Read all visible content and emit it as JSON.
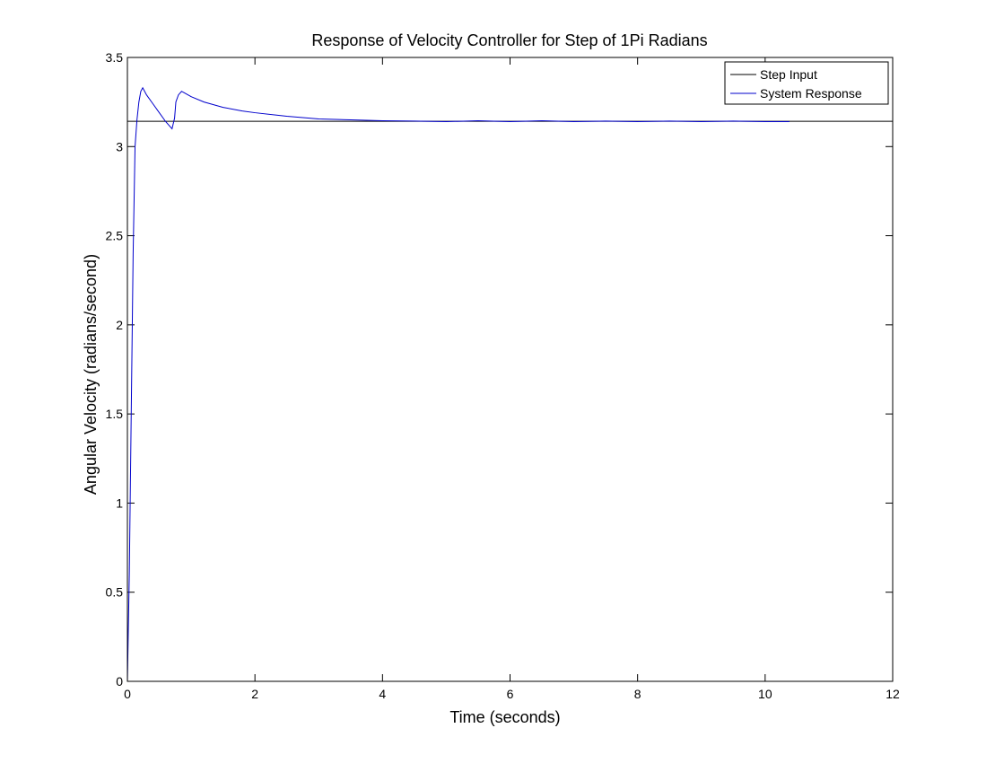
{
  "chart_data": {
    "type": "line",
    "title": "Response of Velocity Controller for Step of 1Pi Radians",
    "xlabel": "Time (seconds)",
    "ylabel": "Angular Velocity (radians/second)",
    "xlim": [
      0,
      12
    ],
    "ylim": [
      0,
      3.5
    ],
    "xticks": [
      "0",
      "2",
      "4",
      "6",
      "8",
      "10",
      "12"
    ],
    "yticks": [
      "0",
      "0.5",
      "1",
      "1.5",
      "2",
      "2.5",
      "3",
      "3.5"
    ],
    "grid": false,
    "legend_position": "top-right",
    "series": [
      {
        "name": "Step Input",
        "color": "#000000",
        "x": [
          0,
          12
        ],
        "y": [
          3.1416,
          3.1416
        ]
      },
      {
        "name": "System Response",
        "color": "#0000cc",
        "x": [
          0,
          0.03,
          0.06,
          0.09,
          0.12,
          0.15,
          0.18,
          0.21,
          0.24,
          0.27,
          0.3,
          0.4,
          0.5,
          0.6,
          0.7,
          0.74,
          0.76,
          0.8,
          0.85,
          0.9,
          1.0,
          1.2,
          1.5,
          1.8,
          2.0,
          2.5,
          3.0,
          3.5,
          4.0,
          4.5,
          5.0,
          5.5,
          6.0,
          6.5,
          7.0,
          7.5,
          8.0,
          8.5,
          9.0,
          9.5,
          10.0,
          10.38
        ],
        "y": [
          0,
          0.6,
          1.5,
          2.4,
          3.0,
          3.15,
          3.25,
          3.31,
          3.33,
          3.31,
          3.29,
          3.24,
          3.19,
          3.14,
          3.1,
          3.16,
          3.25,
          3.29,
          3.31,
          3.3,
          3.28,
          3.25,
          3.22,
          3.2,
          3.19,
          3.17,
          3.155,
          3.15,
          3.145,
          3.143,
          3.14,
          3.145,
          3.14,
          3.145,
          3.14,
          3.143,
          3.14,
          3.143,
          3.14,
          3.143,
          3.14,
          3.14
        ]
      }
    ]
  }
}
